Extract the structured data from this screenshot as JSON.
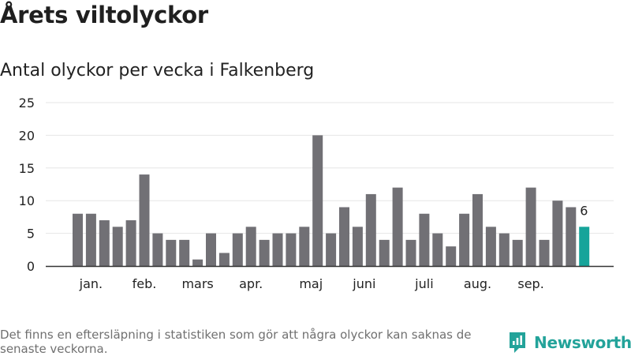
{
  "title": "Årets viltolyckor",
  "subtitle": "Antal olyckor per vecka i Falkenberg",
  "footer": "Det finns en eftersläpning i statistiken som gör att några olyckor kan saknas de senaste veckorna.",
  "brand": {
    "name": "Newsworthy",
    "icon": "newsworthy-logo-icon",
    "color": "#23a39a"
  },
  "chart_data": {
    "type": "bar",
    "title": "Antal olyckor per vecka i Falkenberg",
    "ylim": [
      0,
      25
    ],
    "yticks": [
      0,
      5,
      10,
      15,
      20,
      25
    ],
    "grid": true,
    "values": [
      8,
      8,
      7,
      6,
      7,
      14,
      5,
      4,
      4,
      1,
      5,
      2,
      5,
      6,
      4,
      5,
      5,
      6,
      20,
      5,
      9,
      6,
      11,
      4,
      12,
      4,
      8,
      5,
      3,
      8,
      11,
      6,
      5,
      4,
      12,
      4,
      10,
      9,
      6
    ],
    "month_labels": [
      {
        "label": "jan.",
        "at_bar": 1
      },
      {
        "label": "feb.",
        "at_bar": 5
      },
      {
        "label": "mars",
        "at_bar": 9
      },
      {
        "label": "apr.",
        "at_bar": 13
      },
      {
        "label": "maj",
        "at_bar": 17.5
      },
      {
        "label": "juni",
        "at_bar": 21.5
      },
      {
        "label": "juli",
        "at_bar": 26
      },
      {
        "label": "aug.",
        "at_bar": 30
      },
      {
        "label": "sep.",
        "at_bar": 34
      }
    ],
    "highlight_last": true,
    "last_value_label": "6",
    "colors": {
      "bar": "#717075",
      "highlight": "#16a49a",
      "grid": "#e6e6e6",
      "axis": "#333333"
    }
  }
}
